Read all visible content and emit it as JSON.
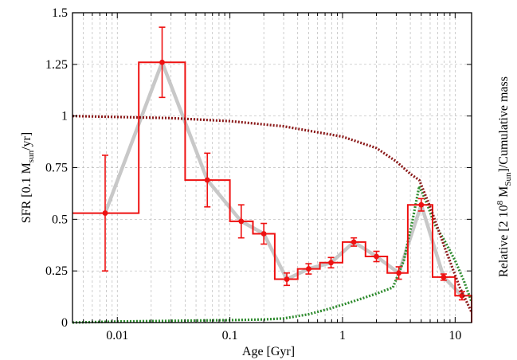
{
  "chart_data": {
    "type": "line",
    "xlabel": "Age [Gyr]",
    "ylabel": "SFR [0.1 M_sun/yr]",
    "ylabel_parts": {
      "pre": "SFR [0.1 M",
      "sub": "sun",
      "post": "/yr]"
    },
    "y2label": "Relative [2 10^8 M_Sun]/Cumulative mass",
    "y2label_parts": {
      "pre": "Relative [2 10",
      "sup": "8",
      "mid": " M",
      "sub": "Sun",
      "post": "]/Cumulative mass"
    },
    "x_scale": "log",
    "xlim": [
      0.004,
      14
    ],
    "ylim": [
      0,
      1.5
    ],
    "grid": true,
    "x_ticks": [
      0.01,
      0.1,
      1,
      10
    ],
    "x_tick_labels": [
      "0.01",
      "0.1",
      "1",
      "10"
    ],
    "y_ticks": [
      0,
      0.25,
      0.5,
      0.75,
      1,
      1.25,
      1.5
    ],
    "y_tick_labels": [
      "0",
      "0.25",
      "0.5",
      "0.75",
      "1",
      "1.25",
      "1.5"
    ],
    "colors": {
      "sfr": "#ee1111",
      "smooth": "#c8c8c8",
      "cumulative": "#8b1a1a",
      "relative": "#2e8b2e",
      "grid": "#b8b8b8"
    },
    "series": [
      {
        "kind": "step",
        "bins": [
          {
            "x0": 0.004,
            "x1": 0.0155,
            "y": 0.53
          },
          {
            "x0": 0.0155,
            "x1": 0.04,
            "y": 1.26
          },
          {
            "x0": 0.04,
            "x1": 0.1,
            "y": 0.69
          },
          {
            "x0": 0.1,
            "x1": 0.16,
            "y": 0.49
          },
          {
            "x0": 0.16,
            "x1": 0.25,
            "y": 0.43
          },
          {
            "x0": 0.25,
            "x1": 0.4,
            "y": 0.21
          },
          {
            "x0": 0.4,
            "x1": 0.63,
            "y": 0.26
          },
          {
            "x0": 0.63,
            "x1": 1.0,
            "y": 0.29
          },
          {
            "x0": 1.0,
            "x1": 1.6,
            "y": 0.39
          },
          {
            "x0": 1.6,
            "x1": 2.5,
            "y": 0.32
          },
          {
            "x0": 2.5,
            "x1": 3.8,
            "y": 0.24
          },
          {
            "x0": 3.8,
            "x1": 6.3,
            "y": 0.57
          },
          {
            "x0": 6.3,
            "x1": 10,
            "y": 0.22
          },
          {
            "x0": 10,
            "x1": 14,
            "y": 0.13
          }
        ]
      },
      {
        "kind": "errorbar",
        "points": [
          {
            "x": 0.0078,
            "y": 0.53,
            "err": 0.28
          },
          {
            "x": 0.025,
            "y": 1.26,
            "err": 0.17
          },
          {
            "x": 0.063,
            "y": 0.69,
            "err": 0.13
          },
          {
            "x": 0.126,
            "y": 0.49,
            "err": 0.08
          },
          {
            "x": 0.2,
            "y": 0.43,
            "err": 0.05
          },
          {
            "x": 0.32,
            "y": 0.21,
            "err": 0.03
          },
          {
            "x": 0.5,
            "y": 0.26,
            "err": 0.025
          },
          {
            "x": 0.79,
            "y": 0.29,
            "err": 0.025
          },
          {
            "x": 1.26,
            "y": 0.39,
            "err": 0.02
          },
          {
            "x": 2.0,
            "y": 0.32,
            "err": 0.025
          },
          {
            "x": 3.16,
            "y": 0.24,
            "err": 0.03
          },
          {
            "x": 5.0,
            "y": 0.57,
            "err": 0.03
          },
          {
            "x": 7.9,
            "y": 0.22,
            "err": 0.015
          },
          {
            "x": 11.5,
            "y": 0.13,
            "err": 0.02
          }
        ]
      },
      {
        "kind": "line",
        "points": [
          [
            0.0078,
            0.53
          ],
          [
            0.025,
            1.26
          ],
          [
            0.063,
            0.69
          ],
          [
            0.126,
            0.49
          ],
          [
            0.2,
            0.43
          ],
          [
            0.32,
            0.21
          ],
          [
            0.5,
            0.26
          ],
          [
            0.79,
            0.29
          ],
          [
            1.26,
            0.39
          ],
          [
            2.0,
            0.32
          ],
          [
            3.16,
            0.24
          ],
          [
            5.0,
            0.57
          ],
          [
            7.9,
            0.22
          ],
          [
            11.5,
            0.13
          ]
        ]
      },
      {
        "kind": "dotted",
        "points": [
          [
            0.004,
            1.0
          ],
          [
            0.03,
            0.99
          ],
          [
            0.1,
            0.975
          ],
          [
            0.3,
            0.95
          ],
          [
            1,
            0.9
          ],
          [
            2,
            0.845
          ],
          [
            3,
            0.78
          ],
          [
            4,
            0.72
          ],
          [
            4.8,
            0.69
          ],
          [
            6,
            0.56
          ],
          [
            8,
            0.37
          ],
          [
            11,
            0.17
          ],
          [
            14,
            0.05
          ]
        ]
      },
      {
        "kind": "dotted",
        "points": [
          [
            0.004,
            0.0
          ],
          [
            0.01,
            0.005
          ],
          [
            0.05,
            0.01
          ],
          [
            0.1,
            0.012
          ],
          [
            0.2,
            0.015
          ],
          [
            0.3,
            0.02
          ],
          [
            0.5,
            0.04
          ],
          [
            0.8,
            0.07
          ],
          [
            1.2,
            0.1
          ],
          [
            2,
            0.14
          ],
          [
            2.8,
            0.17
          ],
          [
            3.5,
            0.3
          ],
          [
            4.2,
            0.5
          ],
          [
            4.8,
            0.66
          ],
          [
            5.6,
            0.58
          ],
          [
            6.5,
            0.48
          ],
          [
            8,
            0.4
          ],
          [
            10,
            0.3
          ],
          [
            12,
            0.2
          ],
          [
            14,
            0.1
          ]
        ]
      }
    ]
  }
}
